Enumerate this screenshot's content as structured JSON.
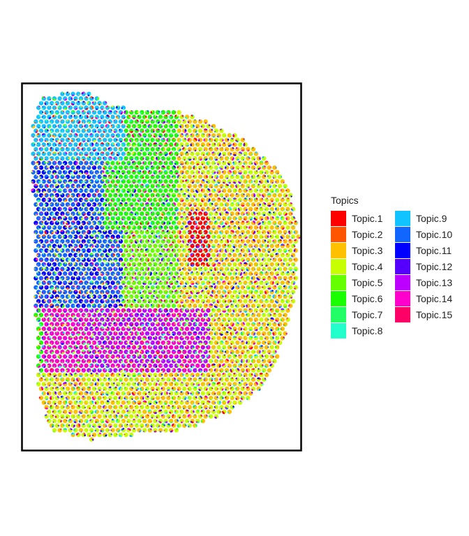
{
  "chart_data": {
    "type": "scatter",
    "description_kind": "spatial scatter of spots, each spot a pie of topic proportions",
    "title": "",
    "xlabel": "",
    "ylabel": "",
    "legend": {
      "title": "Topics",
      "placement": "right",
      "columns": 2,
      "entries": [
        {
          "name": "Topic.1",
          "color": "#FF0000"
        },
        {
          "name": "Topic.2",
          "color": "#FF5500"
        },
        {
          "name": "Topic.3",
          "color": "#FFC000"
        },
        {
          "name": "Topic.4",
          "color": "#C8FF00"
        },
        {
          "name": "Topic.5",
          "color": "#66FF00"
        },
        {
          "name": "Topic.6",
          "color": "#1AFF00"
        },
        {
          "name": "Topic.7",
          "color": "#22FF66"
        },
        {
          "name": "Topic.8",
          "color": "#22FFCC"
        },
        {
          "name": "Topic.9",
          "color": "#11C4FF"
        },
        {
          "name": "Topic.10",
          "color": "#1166FF"
        },
        {
          "name": "Topic.11",
          "color": "#0000FF"
        },
        {
          "name": "Topic.12",
          "color": "#5500FF"
        },
        {
          "name": "Topic.13",
          "color": "#BB00FF"
        },
        {
          "name": "Topic.14",
          "color": "#FF00CC"
        },
        {
          "name": "Topic.15",
          "color": "#FF0066"
        }
      ]
    },
    "grid": false,
    "regions": [
      {
        "dominant_topic": "Topic.9",
        "area": "top-left"
      },
      {
        "dominant_topic": "Topic.10",
        "area": "left-middle"
      },
      {
        "dominant_topic": "Topic.6",
        "area": "upper-center"
      },
      {
        "dominant_topic": "Topic.1",
        "area": "center-right small patch"
      },
      {
        "dominant_topic": "Topic.3",
        "area": "right"
      },
      {
        "dominant_topic": "Topic.13",
        "area": "lower-middle band"
      },
      {
        "dominant_topic": "Topic.4",
        "area": "bottom"
      }
    ]
  }
}
